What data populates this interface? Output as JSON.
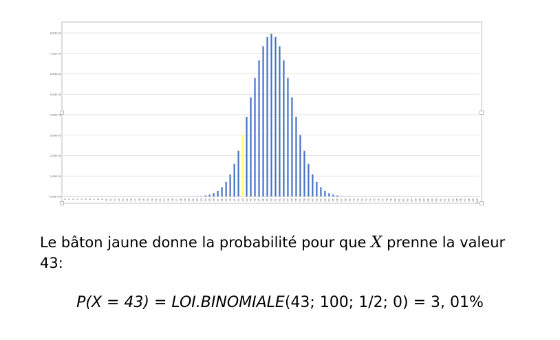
{
  "chart_data": {
    "type": "bar",
    "title": "",
    "xlabel": "",
    "ylabel": "",
    "ylim": [
      0,
      0.08
    ],
    "yticks": [
      "0,00E+00",
      "1,00E-02",
      "2,00E-02",
      "3,00E-02",
      "4,00E-02",
      "5,00E-02",
      "6,00E-02",
      "7,00E-02",
      "8,00E-02"
    ],
    "ytick_values": [
      0,
      0.01,
      0.02,
      0.03,
      0.04,
      0.05,
      0.06,
      0.07,
      0.08
    ],
    "categories": [
      "0",
      "1",
      "2",
      "3",
      "4",
      "5",
      "6",
      "7",
      "8",
      "9",
      "10",
      "11",
      "12",
      "13",
      "14",
      "15",
      "16",
      "17",
      "18",
      "19",
      "20",
      "21",
      "22",
      "23",
      "24",
      "25",
      "26",
      "27",
      "28",
      "29",
      "30",
      "31",
      "32",
      "33",
      "34",
      "35",
      "36",
      "37",
      "38",
      "39",
      "40",
      "41",
      "42",
      "43",
      "44",
      "45",
      "46",
      "47",
      "48",
      "49",
      "50",
      "51",
      "52",
      "53",
      "54",
      "55",
      "56",
      "57",
      "58",
      "59",
      "60",
      "61",
      "62",
      "63",
      "64",
      "65",
      "66",
      "67",
      "68",
      "69",
      "70",
      "71",
      "72",
      "73",
      "74",
      "75",
      "76",
      "77",
      "78",
      "79",
      "80",
      "81",
      "82",
      "83",
      "84",
      "85",
      "86",
      "87",
      "88",
      "89",
      "90",
      "91",
      "92",
      "93",
      "94",
      "95",
      "96",
      "97",
      "98",
      "99",
      "100"
    ],
    "values": [
      0,
      0,
      0,
      0,
      0,
      0,
      0,
      0,
      0,
      0,
      0,
      0,
      0,
      0,
      0,
      0,
      0,
      0,
      0,
      0,
      0,
      0,
      0,
      0,
      0,
      0,
      0,
      0,
      0,
      0,
      0.0,
      0.0001,
      0.0001,
      0.0002,
      0.0005,
      0.0009,
      0.0016,
      0.0027,
      0.0045,
      0.0071,
      0.0108,
      0.0159,
      0.0223,
      0.0301,
      0.039,
      0.0485,
      0.058,
      0.0666,
      0.0735,
      0.078,
      0.0796,
      0.078,
      0.0735,
      0.0666,
      0.058,
      0.0485,
      0.039,
      0.0301,
      0.0223,
      0.0159,
      0.0108,
      0.0071,
      0.0045,
      0.0027,
      0.0016,
      0.0009,
      0.0005,
      0.0002,
      0.0001,
      0.0001,
      0.0,
      0,
      0,
      0,
      0,
      0,
      0,
      0,
      0,
      0,
      0,
      0,
      0,
      0,
      0,
      0,
      0,
      0,
      0,
      0,
      0,
      0,
      0,
      0,
      0,
      0,
      0,
      0,
      0,
      0,
      0
    ],
    "highlight_index": 43,
    "colors": {
      "bar": "#4472C4",
      "highlight": "#FFFF66",
      "grid": "#D9D9D9",
      "frame": "#BFBFBF",
      "handle": "#A6A6A6"
    },
    "grid": true,
    "legend": "none"
  },
  "caption": {
    "before": "Le bâton jaune donne la probabilité pour que ",
    "variable": "X",
    "after": " prenne la valeur",
    "line2": "43:"
  },
  "formula": {
    "lhs": "P(X = 43) = ",
    "func": "LOI.BINOMIALE",
    "args": "(43; 100; 1/2; 0)",
    "rhs": " = 3, 01%"
  }
}
